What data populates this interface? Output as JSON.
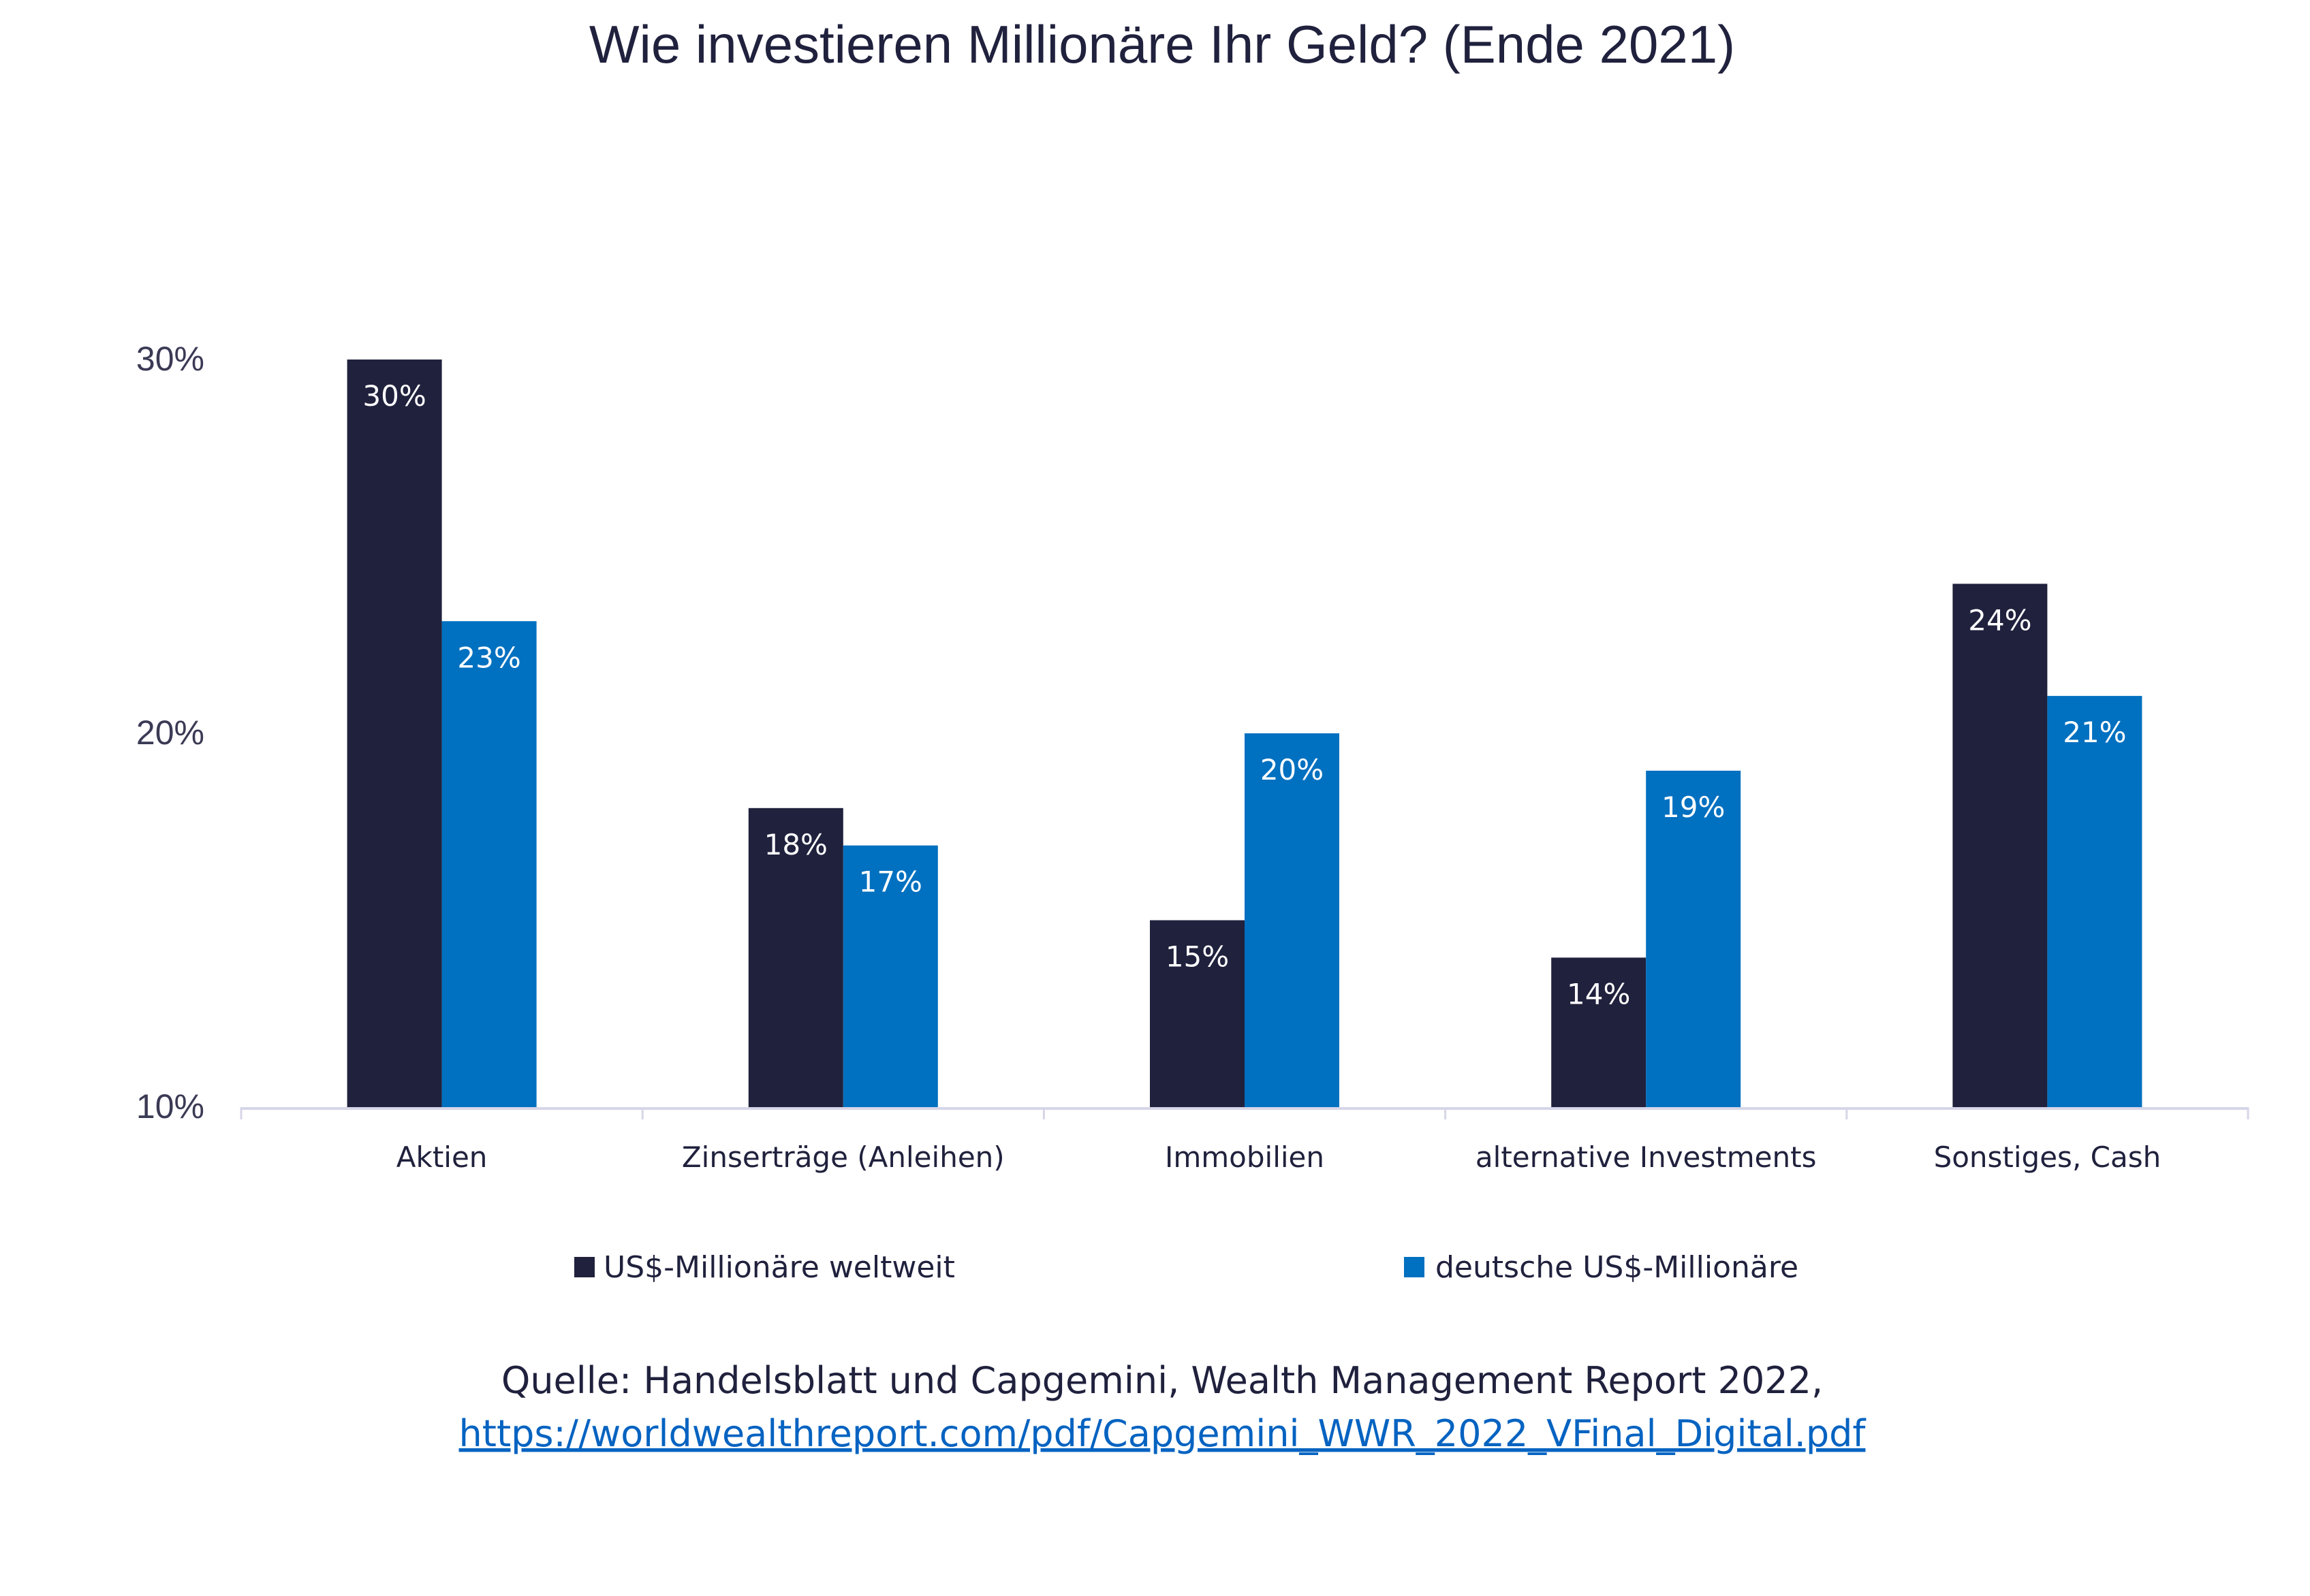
{
  "chart_data": {
    "type": "bar",
    "title": "Wie investieren Millionäre Ihr Geld? (Ende 2021)",
    "categories": [
      "Aktien",
      "Zinserträge (Anleihen)",
      "Immobilien",
      "alternative Investments",
      "Sonstiges, Cash"
    ],
    "series": [
      {
        "name": "US$-Millionäre weltweit",
        "values": [
          30,
          18,
          15,
          14,
          24
        ],
        "labels": [
          "30%",
          "18%",
          "15%",
          "14%",
          "24%"
        ],
        "color": "#20213d"
      },
      {
        "name": "deutsche US$-Millionäre",
        "values": [
          23,
          17,
          20,
          19,
          21
        ],
        "labels": [
          "23%",
          "17%",
          "20%",
          "19%",
          "21%"
        ],
        "color": "#0070c0"
      }
    ],
    "ylim": [
      10,
      30
    ],
    "yticks": [
      10,
      20,
      30
    ],
    "ytick_labels": [
      "10%",
      "20%",
      "30%"
    ],
    "xlabel": "",
    "ylabel": "",
    "grid": false,
    "legend_position": "bottom"
  },
  "source": {
    "text": "Quelle: Handelsblatt und Capgemini, Wealth Management Report 2022,",
    "link": "https://worldwealthreport.com/pdf/Capgemini_WWR_2022_VFinal_Digital.pdf"
  }
}
